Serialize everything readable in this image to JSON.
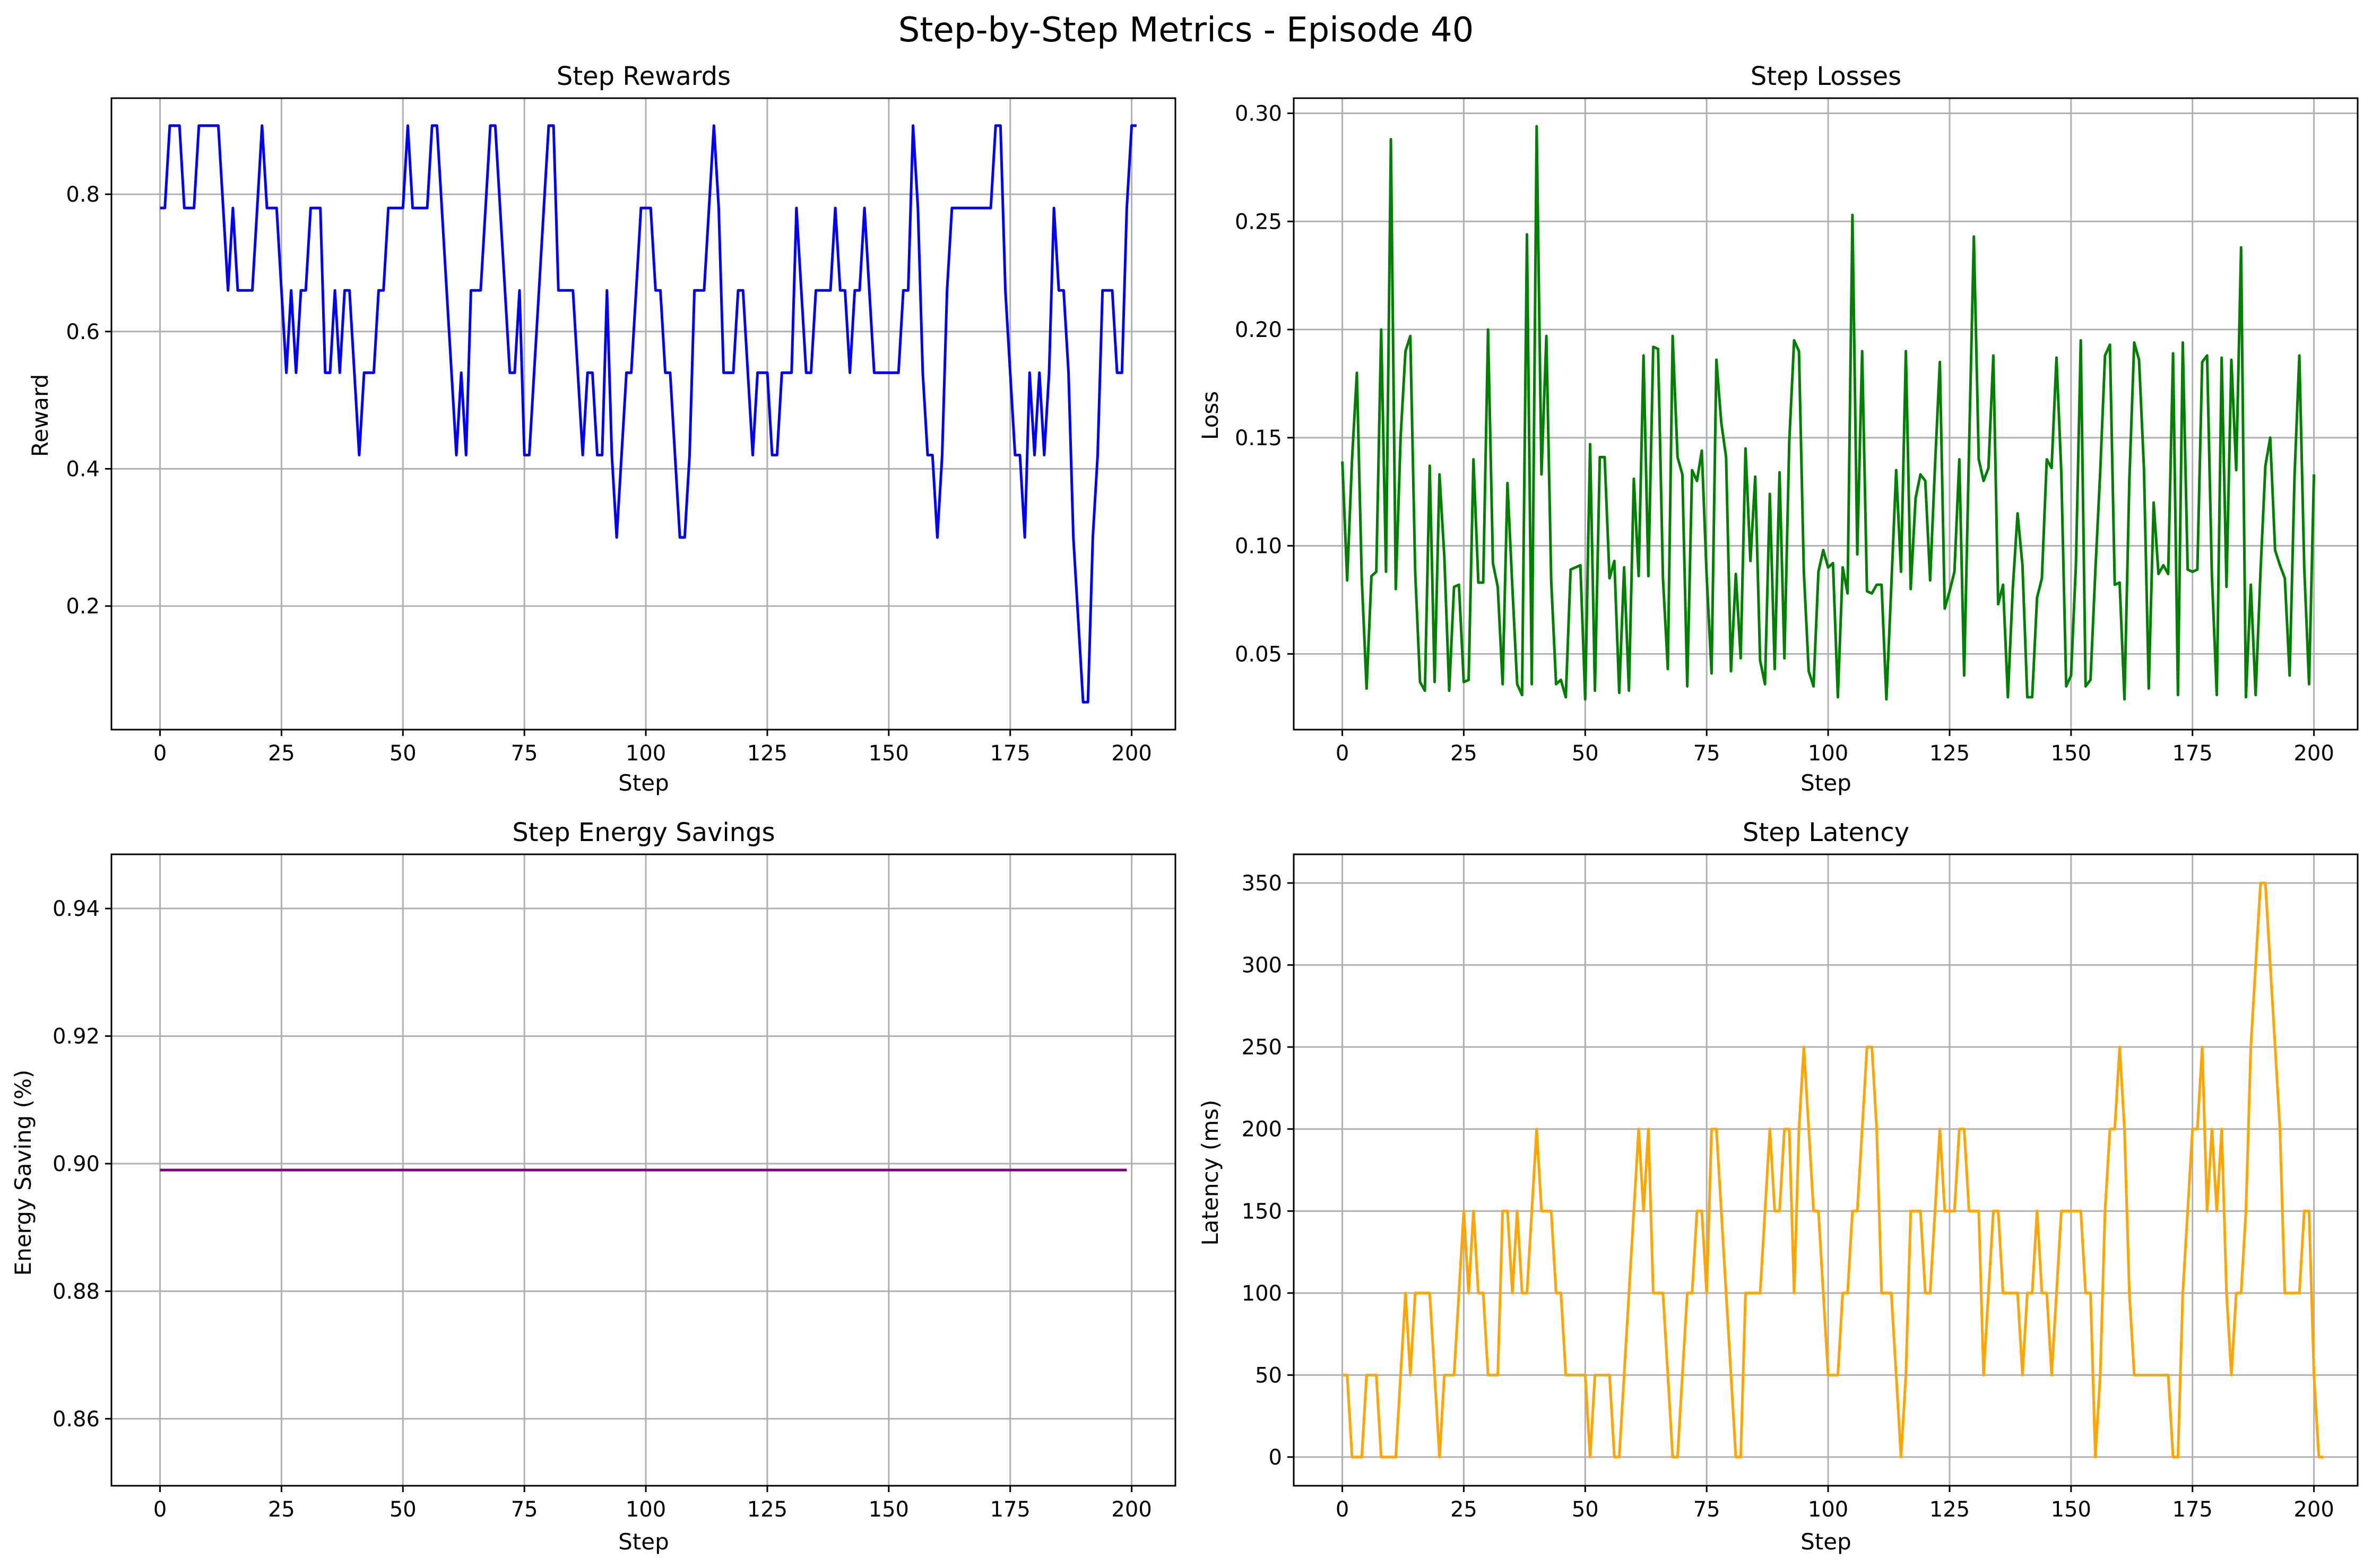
{
  "figure": {
    "suptitle": "Step-by-Step Metrics - Episode 40"
  },
  "chart_data": [
    {
      "type": "line",
      "title": "Step Rewards",
      "xlabel": "Step",
      "ylabel": "Reward",
      "xlim": [
        -10,
        209
      ],
      "ylim": [
        0.02,
        0.94
      ],
      "xticks": [
        0,
        25,
        50,
        75,
        100,
        125,
        150,
        175,
        200
      ],
      "yticks": [
        0.2,
        0.4,
        0.6,
        0.8
      ],
      "ytick_decimals": 1,
      "grid": true,
      "color": "#0000ff",
      "series": [
        {
          "values": [
            0.78,
            0.78,
            0.9,
            0.9,
            0.9,
            0.78,
            0.78,
            0.78,
            0.9,
            0.9,
            0.9,
            0.9,
            0.9,
            0.78,
            0.66,
            0.78,
            0.66,
            0.66,
            0.66,
            0.66,
            0.78,
            0.9,
            0.78,
            0.78,
            0.78,
            0.66,
            0.54,
            0.66,
            0.54,
            0.66,
            0.66,
            0.78,
            0.78,
            0.78,
            0.54,
            0.54,
            0.66,
            0.54,
            0.66,
            0.66,
            0.54,
            0.42,
            0.54,
            0.54,
            0.54,
            0.66,
            0.66,
            0.78,
            0.78,
            0.78,
            0.78,
            0.9,
            0.78,
            0.78,
            0.78,
            0.78,
            0.9,
            0.9,
            0.78,
            0.66,
            0.54,
            0.42,
            0.54,
            0.42,
            0.66,
            0.66,
            0.66,
            0.78,
            0.9,
            0.9,
            0.78,
            0.66,
            0.54,
            0.54,
            0.66,
            0.42,
            0.42,
            0.54,
            0.66,
            0.78,
            0.9,
            0.9,
            0.66,
            0.66,
            0.66,
            0.66,
            0.54,
            0.42,
            0.54,
            0.54,
            0.42,
            0.42,
            0.66,
            0.42,
            0.3,
            0.42,
            0.54,
            0.54,
            0.66,
            0.78,
            0.78,
            0.78,
            0.66,
            0.66,
            0.54,
            0.54,
            0.42,
            0.3,
            0.3,
            0.42,
            0.66,
            0.66,
            0.66,
            0.78,
            0.9,
            0.78,
            0.54,
            0.54,
            0.54,
            0.66,
            0.66,
            0.54,
            0.42,
            0.54,
            0.54,
            0.54,
            0.42,
            0.42,
            0.54,
            0.54,
            0.54,
            0.78,
            0.66,
            0.54,
            0.54,
            0.66,
            0.66,
            0.66,
            0.66,
            0.78,
            0.66,
            0.66,
            0.54,
            0.66,
            0.66,
            0.78,
            0.66,
            0.54,
            0.54,
            0.54,
            0.54,
            0.54,
            0.54,
            0.66,
            0.66,
            0.9,
            0.78,
            0.54,
            0.42,
            0.42,
            0.3,
            0.42,
            0.66,
            0.78,
            0.78,
            0.78,
            0.78,
            0.78,
            0.78,
            0.78,
            0.78,
            0.78,
            0.9,
            0.9,
            0.66,
            0.54,
            0.42,
            0.42,
            0.3,
            0.54,
            0.42,
            0.54,
            0.42,
            0.54,
            0.78,
            0.66,
            0.66,
            0.54,
            0.3,
            0.18,
            0.06,
            0.06,
            0.3,
            0.42,
            0.66,
            0.66,
            0.66,
            0.54,
            0.54,
            0.78,
            0.9,
            0.9
          ]
        }
      ]
    },
    {
      "type": "line",
      "title": "Step Losses",
      "xlabel": "Step",
      "ylabel": "Loss",
      "xlim": [
        -10,
        209
      ],
      "ylim": [
        0.015,
        0.307
      ],
      "xticks": [
        0,
        25,
        50,
        75,
        100,
        125,
        150,
        175,
        200
      ],
      "yticks": [
        0.05,
        0.1,
        0.15,
        0.2,
        0.25,
        0.3
      ],
      "ytick_decimals": 2,
      "grid": true,
      "color": "#008000",
      "series": [
        {
          "values": [
            0.139,
            0.084,
            0.14,
            0.18,
            0.085,
            0.034,
            0.086,
            0.088,
            0.2,
            0.088,
            0.288,
            0.08,
            0.15,
            0.19,
            0.197,
            0.088,
            0.037,
            0.033,
            0.137,
            0.037,
            0.133,
            0.095,
            0.033,
            0.081,
            0.082,
            0.037,
            0.038,
            0.14,
            0.083,
            0.083,
            0.2,
            0.092,
            0.081,
            0.036,
            0.129,
            0.081,
            0.036,
            0.031,
            0.244,
            0.036,
            0.294,
            0.133,
            0.197,
            0.084,
            0.036,
            0.038,
            0.03,
            0.089,
            0.09,
            0.091,
            0.029,
            0.147,
            0.033,
            0.141,
            0.141,
            0.085,
            0.093,
            0.032,
            0.09,
            0.033,
            0.131,
            0.086,
            0.188,
            0.086,
            0.192,
            0.191,
            0.085,
            0.043,
            0.197,
            0.141,
            0.133,
            0.035,
            0.135,
            0.13,
            0.144,
            0.086,
            0.041,
            0.186,
            0.157,
            0.141,
            0.042,
            0.087,
            0.048,
            0.145,
            0.093,
            0.132,
            0.047,
            0.036,
            0.124,
            0.043,
            0.134,
            0.048,
            0.148,
            0.195,
            0.19,
            0.088,
            0.042,
            0.035,
            0.088,
            0.098,
            0.09,
            0.092,
            0.03,
            0.09,
            0.078,
            0.253,
            0.096,
            0.19,
            0.079,
            0.078,
            0.082,
            0.082,
            0.029,
            0.081,
            0.135,
            0.088,
            0.19,
            0.08,
            0.122,
            0.133,
            0.13,
            0.084,
            0.137,
            0.185,
            0.071,
            0.079,
            0.088,
            0.14,
            0.04,
            0.144,
            0.243,
            0.14,
            0.13,
            0.136,
            0.188,
            0.073,
            0.082,
            0.03,
            0.08,
            0.115,
            0.091,
            0.03,
            0.03,
            0.076,
            0.085,
            0.14,
            0.136,
            0.187,
            0.134,
            0.035,
            0.04,
            0.091,
            0.195,
            0.035,
            0.038,
            0.088,
            0.134,
            0.188,
            0.193,
            0.082,
            0.083,
            0.029,
            0.13,
            0.194,
            0.186,
            0.136,
            0.034,
            0.12,
            0.087,
            0.091,
            0.087,
            0.189,
            0.031,
            0.194,
            0.089,
            0.088,
            0.089,
            0.185,
            0.188,
            0.086,
            0.031,
            0.187,
            0.081,
            0.186,
            0.135,
            0.238,
            0.03,
            0.082,
            0.031,
            0.088,
            0.137,
            0.15,
            0.098,
            0.091,
            0.085,
            0.04,
            0.132,
            0.188,
            0.09,
            0.036,
            0.133
          ]
        }
      ]
    },
    {
      "type": "line",
      "title": "Step Energy Savings",
      "xlabel": "Step",
      "ylabel": "Energy Saving (%)",
      "xlim": [
        -10,
        209
      ],
      "ylim": [
        0.8495,
        0.9485
      ],
      "xticks": [
        0,
        25,
        50,
        75,
        100,
        125,
        150,
        175,
        200
      ],
      "yticks": [
        0.86,
        0.88,
        0.9,
        0.92,
        0.94
      ],
      "ytick_decimals": 2,
      "grid": true,
      "color": "#800080",
      "series": [
        {
          "x_range": [
            0,
            199
          ],
          "constant_value": 0.899
        }
      ]
    },
    {
      "type": "line",
      "title": "Step Latency",
      "xlabel": "Step",
      "ylabel": "Latency (ms)",
      "xlim": [
        -10,
        209
      ],
      "ylim": [
        -17.5,
        367.5
      ],
      "xticks": [
        0,
        25,
        50,
        75,
        100,
        125,
        150,
        175,
        200
      ],
      "yticks": [
        0,
        50,
        100,
        150,
        200,
        250,
        300,
        350
      ],
      "ytick_decimals": 0,
      "grid": true,
      "color": "#ffa500",
      "series": [
        {
          "values": [
            50,
            50,
            0,
            0,
            0,
            50,
            50,
            50,
            0,
            0,
            0,
            0,
            50,
            100,
            50,
            100,
            100,
            100,
            100,
            50,
            0,
            50,
            50,
            50,
            100,
            150,
            100,
            150,
            100,
            100,
            50,
            50,
            50,
            150,
            150,
            100,
            150,
            100,
            100,
            150,
            200,
            150,
            150,
            150,
            100,
            100,
            50,
            50,
            50,
            50,
            50,
            0,
            50,
            50,
            50,
            50,
            0,
            0,
            50,
            100,
            150,
            200,
            150,
            200,
            100,
            100,
            100,
            50,
            0,
            0,
            50,
            100,
            100,
            150,
            150,
            100,
            200,
            200,
            150,
            100,
            50,
            0,
            0,
            100,
            100,
            100,
            100,
            150,
            200,
            150,
            150,
            200,
            200,
            100,
            200,
            250,
            200,
            150,
            150,
            100,
            50,
            50,
            50,
            100,
            100,
            150,
            150,
            200,
            250,
            250,
            200,
            100,
            100,
            100,
            50,
            0,
            50,
            150,
            150,
            150,
            100,
            100,
            150,
            200,
            150,
            150,
            150,
            200,
            200,
            150,
            150,
            150,
            50,
            100,
            150,
            150,
            100,
            100,
            100,
            100,
            50,
            100,
            100,
            150,
            100,
            100,
            50,
            100,
            150,
            150,
            150,
            150,
            150,
            100,
            100,
            0,
            50,
            150,
            200,
            200,
            250,
            200,
            100,
            50,
            50,
            50,
            50,
            50,
            50,
            50,
            50,
            0,
            0,
            100,
            150,
            200,
            200,
            250,
            150,
            200,
            150,
            200,
            100,
            50,
            100,
            100,
            150,
            250,
            300,
            350,
            350,
            300,
            250,
            200,
            100,
            100,
            100,
            100,
            150,
            150,
            50,
            0,
            0
          ]
        }
      ]
    }
  ]
}
